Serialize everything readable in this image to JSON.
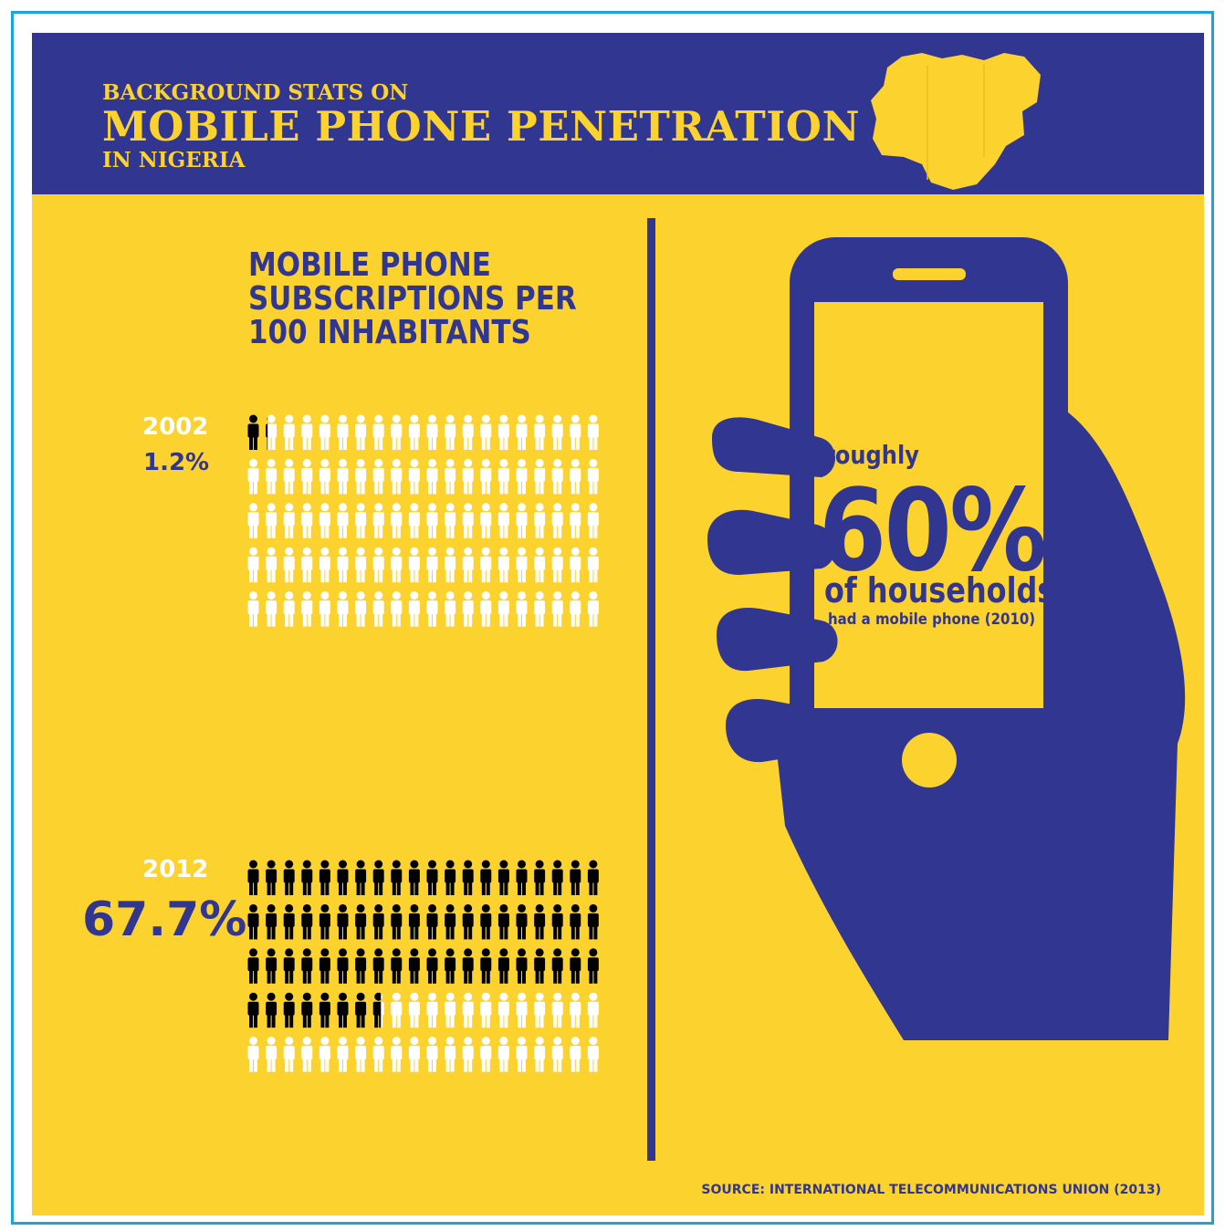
{
  "header": {
    "line1": "BACKGROUND STATS ON",
    "line2": "MOBILE PHONE PENETRATION",
    "line3": "IN NIGERIA"
  },
  "colors": {
    "navy": "#313690",
    "yellow": "#fcd22e",
    "frame": "#1aa4dc",
    "filled_person": "#000000",
    "empty_person": "#ffffff"
  },
  "icons": [
    "nigeria-map-icon",
    "person-icon",
    "phone-in-hand-icon"
  ],
  "chart_data": {
    "type": "pictogram",
    "title": "MOBILE PHONE SUBSCRIPTIONS PER 100 INHABITANTS",
    "total_units": 100,
    "grid_columns": 20,
    "grid_rows": 5,
    "categories": [
      "2002",
      "2012"
    ],
    "values": [
      1.2,
      67.7
    ],
    "value_labels": [
      "1.2%",
      "67.7%"
    ]
  },
  "phone_stat": {
    "lead": "roughly",
    "value": "60%",
    "subject": "of households",
    "detail": "had a mobile phone (2010)"
  },
  "source": "SOURCE: INTERNATIONAL TELECOMMUNICATIONS UNION (2013)"
}
